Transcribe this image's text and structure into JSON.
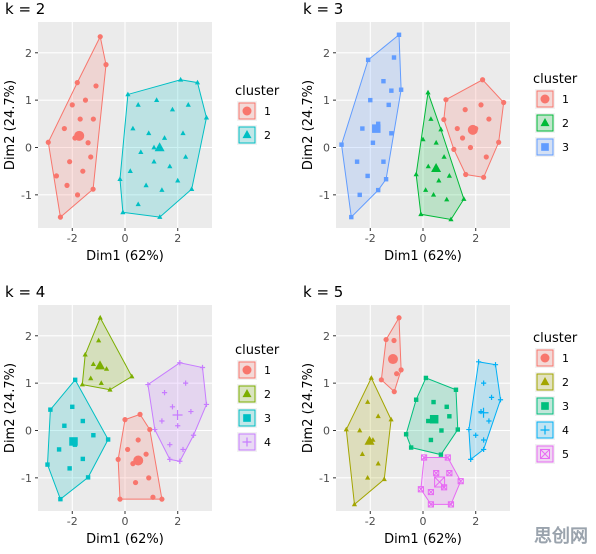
{
  "chart_data": [
    {
      "type": "scatter",
      "title": "k = 2",
      "x_label": "Dim1 (62%)",
      "y_label": "Dim2 (24.7%)",
      "legend_title": "cluster",
      "xlim": [
        -3.3,
        3.3
      ],
      "ylim": [
        -1.7,
        2.65
      ],
      "xticks": [
        -2,
        0,
        2
      ],
      "yticks": [
        -1,
        0,
        1,
        2
      ],
      "grid": true,
      "series": [
        {
          "name": "1",
          "color": "#F8766D",
          "shape": "circle",
          "x": [
            -0.94,
            -0.72,
            -1.21,
            -2.45,
            -2.91,
            -1.81,
            -1.1,
            -1.5,
            -2.0,
            -1.7,
            -2.3,
            -1.9,
            -1.4,
            -2.1,
            -1.6,
            -2.6,
            -1.3,
            -2.2,
            -1.8,
            -1.2
          ],
          "y": [
            2.34,
            1.75,
            -0.88,
            -1.47,
            0.11,
            1.37,
            1.3,
            1.0,
            0.9,
            0.6,
            0.4,
            0.2,
            0.1,
            -0.3,
            -0.5,
            -0.6,
            -0.2,
            -0.8,
            -1.0,
            0.6
          ]
        },
        {
          "name": "2",
          "color": "#00BFC4",
          "shape": "triangle",
          "x": [
            0.11,
            2.11,
            2.75,
            3.09,
            2.53,
            1.32,
            -0.08,
            -0.19,
            0.5,
            1.2,
            1.8,
            2.4,
            0.3,
            0.9,
            1.5,
            2.2,
            0.6,
            1.1,
            1.7,
            2.3,
            0.2,
            0.8,
            1.4,
            0.5,
            2.0,
            1.1
          ],
          "y": [
            1.12,
            1.43,
            1.37,
            0.63,
            -0.88,
            -1.47,
            -1.37,
            -0.67,
            0.9,
            1.0,
            0.8,
            0.9,
            0.4,
            0.3,
            0.2,
            0.3,
            -0.1,
            -0.3,
            -0.4,
            -0.2,
            -0.5,
            -0.8,
            -0.9,
            -1.2,
            -0.7,
            0.0
          ]
        }
      ]
    },
    {
      "type": "scatter",
      "title": "k = 3",
      "x_label": "Dim1 (62%)",
      "y_label": "Dim2 (24.7%)",
      "legend_title": "cluster",
      "xlim": [
        -3.3,
        3.3
      ],
      "ylim": [
        -1.7,
        2.65
      ],
      "xticks": [
        -2,
        0,
        2
      ],
      "yticks": [
        -1,
        0,
        1,
        2
      ],
      "grid": true,
      "series": [
        {
          "name": "1",
          "color": "#F8766D",
          "shape": "circle",
          "x": [
            0.87,
            2.26,
            3.06,
            2.87,
            2.3,
            1.62,
            1.17,
            0.79,
            1.6,
            2.2,
            1.3,
            2.0,
            2.5,
            1.8,
            2.4,
            1.5
          ],
          "y": [
            1.01,
            1.43,
            0.95,
            0.11,
            -0.63,
            -0.57,
            -0.04,
            0.59,
            0.8,
            0.9,
            0.4,
            0.4,
            0.6,
            0.0,
            -0.2,
            0.2
          ]
        },
        {
          "name": "2",
          "color": "#00BA38",
          "shape": "triangle",
          "x": [
            0.19,
            0.68,
            1.55,
            1.06,
            -0.08,
            -0.26,
            0.0,
            0.3,
            0.5,
            0.8,
            0.2,
            0.6,
            1.0,
            0.4,
            0.9,
            0.1
          ],
          "y": [
            1.16,
            0.38,
            -1.09,
            -1.52,
            -1.41,
            -0.57,
            0.17,
            0.6,
            0.1,
            -0.2,
            -0.4,
            -0.7,
            -0.6,
            -1.0,
            -1.1,
            -0.9
          ]
        },
        {
          "name": "3",
          "color": "#619CFF",
          "shape": "square",
          "x": [
            -0.91,
            -0.83,
            -1.4,
            -2.72,
            -3.09,
            -2.08,
            -1.1,
            -1.5,
            -2.0,
            -1.3,
            -1.7,
            -2.3,
            -1.2,
            -1.9,
            -2.5,
            -1.5,
            -2.1,
            -1.7,
            -2.4,
            -1.2
          ],
          "y": [
            2.38,
            1.22,
            -0.67,
            -1.47,
            0.06,
            1.85,
            1.9,
            1.4,
            1.0,
            0.9,
            0.5,
            0.4,
            0.3,
            0.1,
            -0.3,
            -0.3,
            -0.6,
            -0.9,
            -1.0,
            1.2
          ]
        }
      ]
    },
    {
      "type": "scatter",
      "title": "k = 4",
      "x_label": "Dim1 (62%)",
      "y_label": "Dim2 (24.7%)",
      "legend_title": "cluster",
      "xlim": [
        -3.3,
        3.3
      ],
      "ylim": [
        -1.7,
        2.65
      ],
      "xticks": [
        -2,
        0,
        2
      ],
      "yticks": [
        -1,
        0,
        1,
        2
      ],
      "grid": true,
      "series": [
        {
          "name": "1",
          "color": "#F8766D",
          "shape": "circle",
          "x": [
            0.57,
            0.94,
            1.4,
            1.06,
            -0.19,
            -0.26,
            0.0,
            0.5,
            0.8,
            0.3,
            0.9,
            0.4,
            0.1
          ],
          "y": [
            0.34,
            0.02,
            -1.45,
            -1.41,
            -1.45,
            -0.61,
            0.23,
            -0.2,
            -0.5,
            -0.7,
            -1.0,
            -1.1,
            -0.4
          ]
        },
        {
          "name": "2",
          "color": "#7CAE00",
          "shape": "triangle",
          "x": [
            -0.94,
            0.26,
            -0.57,
            -1.62,
            -1.51,
            -1.0,
            -1.2,
            -0.7,
            -1.3,
            -0.9
          ],
          "y": [
            2.38,
            1.14,
            0.86,
            0.97,
            1.6,
            1.9,
            1.4,
            1.3,
            1.1,
            1.0
          ]
        },
        {
          "name": "3",
          "color": "#00BFC4",
          "shape": "square",
          "x": [
            -1.89,
            -0.64,
            -1.4,
            -2.45,
            -2.94,
            -2.83,
            -2.0,
            -1.6,
            -2.3,
            -1.2,
            -1.9,
            -2.5,
            -1.6,
            -2.1
          ],
          "y": [
            1.07,
            -0.19,
            -0.99,
            -1.45,
            -0.72,
            0.44,
            0.5,
            0.2,
            0.1,
            -0.1,
            -0.3,
            -0.4,
            -0.6,
            -0.8
          ]
        },
        {
          "name": "4",
          "color": "#C77CFF",
          "shape": "plus",
          "x": [
            0.87,
            2.08,
            2.94,
            3.09,
            2.08,
            1.7,
            1.13,
            1.5,
            2.3,
            1.8,
            2.5,
            1.4,
            2.0,
            2.6,
            1.7,
            2.2
          ],
          "y": [
            0.97,
            1.43,
            1.33,
            0.55,
            -0.65,
            -0.61,
            0.02,
            0.8,
            1.0,
            0.5,
            0.4,
            0.2,
            0.1,
            -0.1,
            -0.3,
            -0.4
          ]
        }
      ]
    },
    {
      "type": "scatter",
      "title": "k = 5",
      "x_label": "Dim1 (62%)",
      "y_label": "Dim2 (24.7%)",
      "legend_title": "cluster",
      "xlim": [
        -3.3,
        3.3
      ],
      "ylim": [
        -1.7,
        2.65
      ],
      "xticks": [
        -2,
        0,
        2
      ],
      "yticks": [
        -1,
        0,
        1,
        2
      ],
      "grid": true,
      "series": [
        {
          "name": "1",
          "color": "#F8766D",
          "shape": "circle",
          "x": [
            -0.91,
            -0.83,
            -1.09,
            -1.58,
            -1.4,
            -1.1,
            -1.2,
            -1.0
          ],
          "y": [
            2.38,
            1.28,
            0.82,
            1.07,
            1.92,
            1.9,
            1.5,
            1.2
          ]
        },
        {
          "name": "2",
          "color": "#A3A500",
          "shape": "triangle",
          "x": [
            -1.96,
            -1.21,
            -1.47,
            -2.6,
            -2.91,
            -2.1,
            -1.7,
            -2.4,
            -1.9,
            -2.3,
            -1.7,
            -2.1
          ],
          "y": [
            1.11,
            0.23,
            -1.03,
            -1.56,
            0.02,
            0.6,
            0.3,
            0.0,
            -0.2,
            -0.5,
            -0.7,
            -1.0
          ]
        },
        {
          "name": "3",
          "color": "#00BF7D",
          "shape": "square",
          "x": [
            0.11,
            1.25,
            1.32,
            0.68,
            -0.45,
            -0.64,
            -0.26,
            0.4,
            0.9,
            0.2,
            0.7,
            1.0,
            0.3
          ],
          "y": [
            1.11,
            0.86,
            0.02,
            -0.51,
            -0.36,
            -0.08,
            0.65,
            0.6,
            0.5,
            0.2,
            0.0,
            0.3,
            -0.2
          ]
        },
        {
          "name": "4",
          "color": "#00B0F6",
          "shape": "plus",
          "x": [
            2.11,
            2.75,
            2.94,
            2.3,
            1.81,
            1.74,
            2.3,
            2.6,
            2.2,
            2.5,
            2.0,
            2.3
          ],
          "y": [
            1.45,
            1.39,
            0.65,
            -0.4,
            -0.61,
            0.02,
            1.0,
            0.7,
            0.4,
            0.2,
            -0.1,
            -0.2
          ]
        },
        {
          "name": "5",
          "color": "#E76BF3",
          "shape": "squarecross",
          "x": [
            0.04,
            0.94,
            1.43,
            1.06,
            0.3,
            -0.08,
            0.5,
            0.8,
            0.3,
            1.0
          ],
          "y": [
            -0.57,
            -0.57,
            -1.07,
            -1.56,
            -1.56,
            -1.24,
            -0.9,
            -1.2,
            -1.3,
            -0.9
          ]
        }
      ]
    }
  ],
  "watermark": "思创网"
}
